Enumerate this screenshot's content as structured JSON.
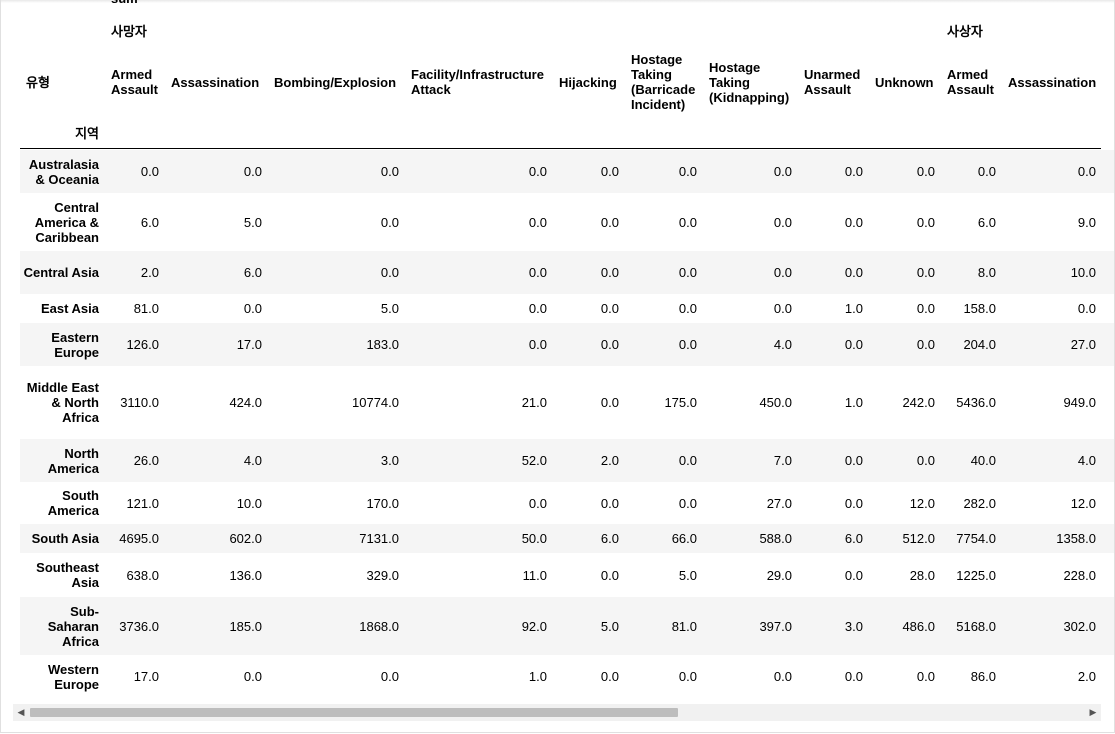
{
  "header": {
    "agg_label": "sum",
    "group_deaths": "사망자",
    "group_casualties": "사상자",
    "row_index_name": "유형",
    "column_index_name": "지역",
    "columns": [
      "Armed Assault",
      "Assassination",
      "Bombing/Explosion",
      "Facility/Infrastructure Attack",
      "Hijacking",
      "Hostage Taking (Barricade Incident)",
      "Hostage Taking (Kidnapping)",
      "Unarmed Assault",
      "Unknown",
      "Armed Assault",
      "Assassination"
    ]
  },
  "rows": [
    {
      "region": "Australasia & Oceania",
      "values": [
        "0.0",
        "0.0",
        "0.0",
        "0.0",
        "0.0",
        "0.0",
        "0.0",
        "0.0",
        "0.0",
        "0.0",
        "0.0"
      ]
    },
    {
      "region": "Central America & Caribbean",
      "values": [
        "6.0",
        "5.0",
        "0.0",
        "0.0",
        "0.0",
        "0.0",
        "0.0",
        "0.0",
        "0.0",
        "6.0",
        "9.0"
      ]
    },
    {
      "region": "Central Asia",
      "values": [
        "2.0",
        "6.0",
        "0.0",
        "0.0",
        "0.0",
        "0.0",
        "0.0",
        "0.0",
        "0.0",
        "8.0",
        "10.0"
      ]
    },
    {
      "region": "East Asia",
      "values": [
        "81.0",
        "0.0",
        "5.0",
        "0.0",
        "0.0",
        "0.0",
        "0.0",
        "1.0",
        "0.0",
        "158.0",
        "0.0"
      ]
    },
    {
      "region": "Eastern Europe",
      "values": [
        "126.0",
        "17.0",
        "183.0",
        "0.0",
        "0.0",
        "0.0",
        "4.0",
        "0.0",
        "0.0",
        "204.0",
        "27.0"
      ]
    },
    {
      "region": "Middle East & North Africa",
      "values": [
        "3110.0",
        "424.0",
        "10774.0",
        "21.0",
        "0.0",
        "175.0",
        "450.0",
        "1.0",
        "242.0",
        "5436.0",
        "949.0"
      ]
    },
    {
      "region": "North America",
      "values": [
        "26.0",
        "4.0",
        "3.0",
        "52.0",
        "2.0",
        "0.0",
        "7.0",
        "0.0",
        "0.0",
        "40.0",
        "4.0"
      ]
    },
    {
      "region": "South America",
      "values": [
        "121.0",
        "10.0",
        "170.0",
        "0.0",
        "0.0",
        "0.0",
        "27.0",
        "0.0",
        "12.0",
        "282.0",
        "12.0"
      ]
    },
    {
      "region": "South Asia",
      "values": [
        "4695.0",
        "602.0",
        "7131.0",
        "50.0",
        "6.0",
        "66.0",
        "588.0",
        "6.0",
        "512.0",
        "7754.0",
        "1358.0"
      ]
    },
    {
      "region": "Southeast Asia",
      "values": [
        "638.0",
        "136.0",
        "329.0",
        "11.0",
        "0.0",
        "5.0",
        "29.0",
        "0.0",
        "28.0",
        "1225.0",
        "228.0"
      ]
    },
    {
      "region": "Sub-Saharan Africa",
      "values": [
        "3736.0",
        "185.0",
        "1868.0",
        "92.0",
        "5.0",
        "81.0",
        "397.0",
        "3.0",
        "486.0",
        "5168.0",
        "302.0"
      ]
    },
    {
      "region": "Western Europe",
      "values": [
        "17.0",
        "0.0",
        "0.0",
        "1.0",
        "0.0",
        "0.0",
        "0.0",
        "0.0",
        "0.0",
        "86.0",
        "2.0"
      ]
    }
  ],
  "scrollbar": {
    "left_arrow": "◀",
    "right_arrow": "▶"
  }
}
